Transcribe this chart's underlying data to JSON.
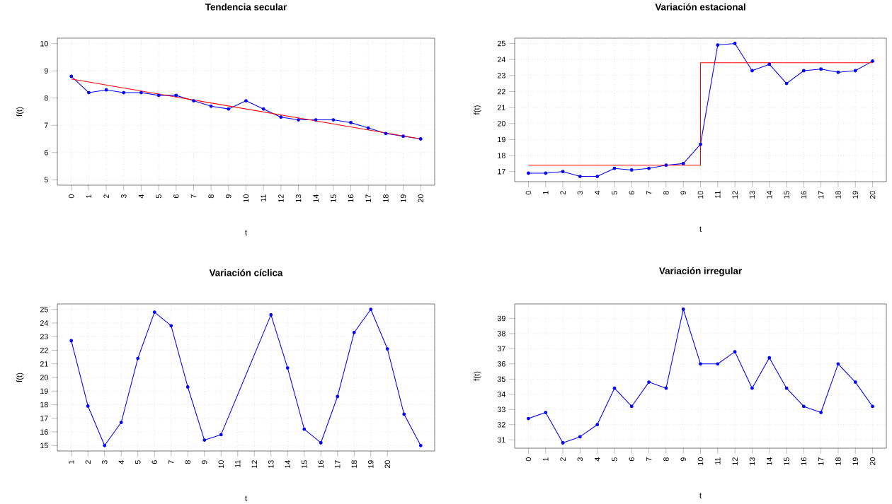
{
  "chart_data": [
    {
      "type": "line",
      "title": "Tendencia secular",
      "xlabel": "t",
      "ylabel": "f(t)",
      "grid": true,
      "marker": "circle",
      "x": [
        0,
        1,
        2,
        3,
        4,
        5,
        6,
        7,
        8,
        9,
        10,
        11,
        12,
        13,
        14,
        15,
        16,
        17,
        18,
        19,
        20
      ],
      "series": [
        {
          "color": "#0000ff",
          "values": [
            8.8,
            8.2,
            8.3,
            8.2,
            8.2,
            8.1,
            8.1,
            7.9,
            7.7,
            7.6,
            7.9,
            7.6,
            7.3,
            7.2,
            7.2,
            7.2,
            7.1,
            6.9,
            6.7,
            6.6,
            6.5
          ]
        },
        {
          "color": "#ff0000",
          "marker": "none",
          "x": [
            0,
            20
          ],
          "values": [
            8.7,
            6.5
          ]
        }
      ],
      "xlim": [
        -0.8,
        20.8
      ],
      "ylim": [
        4.8,
        10.2
      ],
      "xticks": [
        0,
        1,
        2,
        3,
        4,
        5,
        6,
        7,
        8,
        9,
        10,
        11,
        12,
        13,
        14,
        15,
        16,
        17,
        18,
        19,
        20
      ],
      "yticks": [
        5,
        6,
        7,
        8,
        9,
        10
      ]
    },
    {
      "type": "line",
      "title": "Variación estacional",
      "xlabel": "t",
      "ylabel": "f(t)",
      "grid": true,
      "marker": "circle",
      "x": [
        0,
        1,
        2,
        3,
        4,
        5,
        6,
        7,
        8,
        9,
        10,
        11,
        12,
        13,
        14,
        15,
        16,
        17,
        18,
        19,
        20
      ],
      "series": [
        {
          "color": "#0000ff",
          "values": [
            16.9,
            16.9,
            17.0,
            16.7,
            16.7,
            17.2,
            17.1,
            17.2,
            17.4,
            17.5,
            18.7,
            24.9,
            25.0,
            23.3,
            23.7,
            22.5,
            23.3,
            23.4,
            23.2,
            23.3,
            23.9
          ]
        },
        {
          "color": "#ff0000",
          "marker": "none",
          "x": [
            0,
            10,
            10,
            20
          ],
          "values": [
            17.4,
            17.4,
            23.8,
            23.8
          ]
        }
      ],
      "xlim": [
        -0.8,
        20.8
      ],
      "ylim": [
        16.37,
        25.33
      ],
      "xticks": [
        0,
        1,
        2,
        3,
        4,
        5,
        6,
        7,
        8,
        9,
        10,
        11,
        12,
        13,
        14,
        15,
        16,
        17,
        18,
        19,
        20
      ],
      "yticks": [
        17,
        18,
        19,
        20,
        21,
        22,
        23,
        24,
        25
      ]
    },
    {
      "type": "line",
      "title": "Variación cíclica",
      "xlabel": "t",
      "ylabel": "f(t)",
      "grid": true,
      "marker": "circle",
      "x": [
        1,
        2,
        3,
        4,
        5,
        6,
        7,
        8,
        9,
        10,
        13,
        14,
        15,
        16,
        17,
        18,
        19,
        20,
        21,
        22
      ],
      "series": [
        {
          "color": "#0000ff",
          "values": [
            22.7,
            17.9,
            15.0,
            16.7,
            21.4,
            24.8,
            23.8,
            19.3,
            15.4,
            15.8,
            24.6,
            20.7,
            16.2,
            15.2,
            18.6,
            23.3,
            25.0,
            22.1,
            17.3,
            15.0
          ]
        }
      ],
      "xlim": [
        0.16,
        22.84
      ],
      "ylim": [
        14.6,
        25.4
      ],
      "xticks": [
        1,
        2,
        3,
        4,
        5,
        6,
        7,
        8,
        9,
        10,
        11,
        12,
        13,
        14,
        15,
        16,
        17,
        18,
        19,
        20
      ],
      "yticks": [
        15,
        16,
        17,
        18,
        19,
        20,
        21,
        22,
        23,
        24,
        25
      ]
    },
    {
      "type": "line",
      "title": "Variación irregular",
      "xlabel": "t",
      "ylabel": "f(t)",
      "grid": true,
      "marker": "circle",
      "x": [
        0,
        1,
        2,
        3,
        4,
        5,
        6,
        7,
        8,
        9,
        10,
        11,
        12,
        13,
        14,
        15,
        16,
        17,
        18,
        19,
        20
      ],
      "series": [
        {
          "color": "#0000ff",
          "values": [
            32.4,
            32.8,
            30.8,
            31.2,
            32.0,
            34.4,
            33.2,
            34.8,
            34.4,
            39.6,
            36.0,
            36.0,
            36.8,
            34.4,
            36.4,
            34.4,
            33.2,
            32.8,
            36.0,
            34.8,
            33.2
          ]
        }
      ],
      "xlim": [
        -0.8,
        20.8
      ],
      "ylim": [
        30.45,
        39.95
      ],
      "xticks": [
        0,
        1,
        2,
        3,
        4,
        5,
        6,
        7,
        8,
        9,
        10,
        11,
        12,
        13,
        14,
        15,
        16,
        17,
        18,
        19,
        20
      ],
      "yticks": [
        31,
        32,
        33,
        34,
        35,
        36,
        37,
        38,
        39
      ]
    }
  ]
}
